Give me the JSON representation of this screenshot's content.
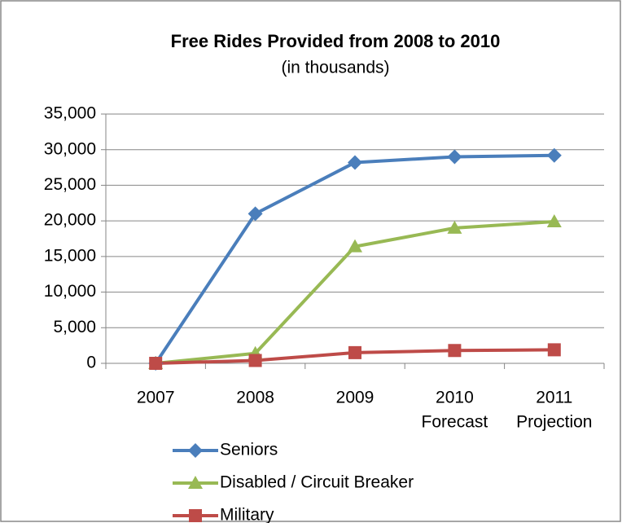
{
  "chart_data": {
    "type": "line",
    "title": "Free Rides Provided from 2008 to 2010",
    "subtitle": "(in thousands)",
    "categories": [
      "2007",
      "2008",
      "2009",
      "2010",
      "2011"
    ],
    "category_sublabels": [
      null,
      null,
      null,
      "Forecast",
      "Projection"
    ],
    "series": [
      {
        "name": "Seniors",
        "color": "#4a7ebb",
        "marker": "diamond",
        "values": [
          0,
          21000,
          28200,
          29000,
          29200
        ]
      },
      {
        "name": "Disabled / Circuit Breaker",
        "color": "#98b954",
        "marker": "triangle",
        "values": [
          0,
          1400,
          16400,
          19000,
          19900
        ]
      },
      {
        "name": "Military",
        "color": "#be4b48",
        "marker": "square",
        "values": [
          0,
          400,
          1500,
          1800,
          1900
        ]
      }
    ],
    "ylim": [
      0,
      35000
    ],
    "yticks": [
      0,
      {
        "value": 5000,
        "label": "5,000"
      },
      {
        "value": 10000,
        "label": "10,000"
      },
      {
        "value": 15000,
        "label": "15,000"
      },
      {
        "value": 20000,
        "label": "20,000"
      },
      {
        "value": 25000,
        "label": "25,000"
      },
      {
        "value": 30000,
        "label": "30,000"
      },
      {
        "value": 35000,
        "label": "35,000"
      }
    ],
    "grid": true,
    "legend": "bottom"
  }
}
